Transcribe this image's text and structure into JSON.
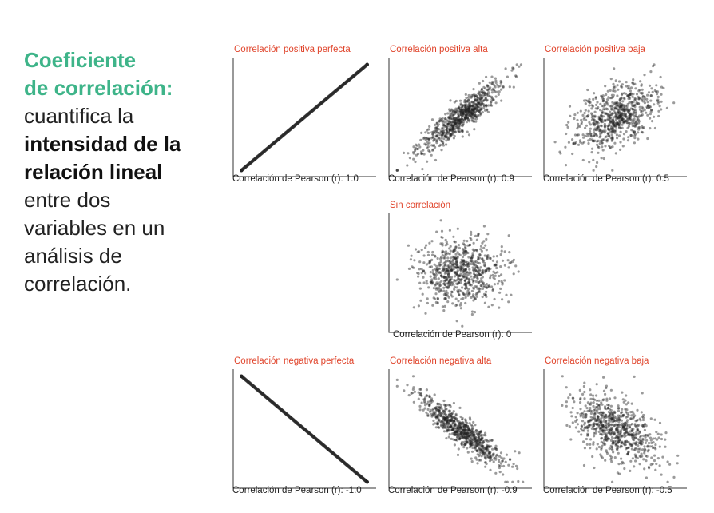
{
  "left_text": {
    "heading_line1": "Coeficiente",
    "heading_line2": "de correlación:",
    "line3": "cuantifica la",
    "bold_line1": "intensidad de la",
    "bold_line2": "relación lineal",
    "line6": "entre dos",
    "line7": "variables en un",
    "line8": "análisis de",
    "line9": "correlación."
  },
  "colors": {
    "accent": "#3eb489",
    "panel_title": "#e0442b",
    "points": "#222222"
  },
  "chart_data": [
    {
      "type": "scatter",
      "title": "Correlación positiva perfecta",
      "caption": "Correlación de Pearson (r): 1.0",
      "r": 1.0,
      "direction": "positive"
    },
    {
      "type": "scatter",
      "title": "Correlación positiva alta",
      "caption": "Correlación de Pearson (r): 0.9",
      "r": 0.9,
      "direction": "positive"
    },
    {
      "type": "scatter",
      "title": "Correlación positiva baja",
      "caption": "Correlación de Pearson (r): 0.5",
      "r": 0.5,
      "direction": "positive"
    },
    {
      "type": "scatter",
      "title": "Sin correlación",
      "caption": "Correlación de Pearson (r): 0",
      "r": 0,
      "direction": "none"
    },
    {
      "type": "scatter",
      "title": "Correlación negativa perfecta",
      "caption": "Correlación de Pearson (r): -1.0",
      "r": -1.0,
      "direction": "negative"
    },
    {
      "type": "scatter",
      "title": "Correlación negativa alta",
      "caption": "Correlación de Pearson (r): -0.9",
      "r": -0.9,
      "direction": "negative"
    },
    {
      "type": "scatter",
      "title": "Correlación negativa baja",
      "caption": "Correlación de Pearson (r): -0.5",
      "r": -0.5,
      "direction": "negative"
    }
  ]
}
